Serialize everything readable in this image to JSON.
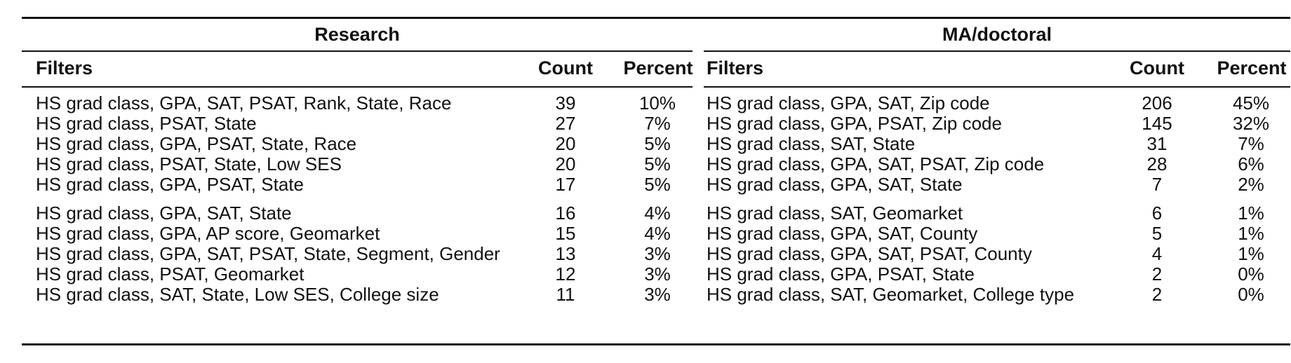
{
  "groups": {
    "left": {
      "title": "Research",
      "headers": {
        "filters": "Filters",
        "count": "Count",
        "percent": "Percent"
      },
      "rows": [
        {
          "filters": "HS grad class, GPA, SAT, PSAT, Rank, State, Race",
          "count": "39",
          "percent": "10%"
        },
        {
          "filters": "HS grad class, PSAT, State",
          "count": "27",
          "percent": "7%"
        },
        {
          "filters": "HS grad class, GPA, PSAT, State, Race",
          "count": "20",
          "percent": "5%"
        },
        {
          "filters": "HS grad class, PSAT, State, Low SES",
          "count": "20",
          "percent": "5%"
        },
        {
          "filters": "HS grad class, GPA, PSAT, State",
          "count": "17",
          "percent": "5%"
        },
        {
          "filters": "HS grad class, GPA, SAT, State",
          "count": "16",
          "percent": "4%"
        },
        {
          "filters": "HS grad class, GPA, AP score, Geomarket",
          "count": "15",
          "percent": "4%"
        },
        {
          "filters": "HS grad class, GPA, SAT, PSAT, State, Segment, Gender",
          "count": "13",
          "percent": "3%"
        },
        {
          "filters": "HS grad class, PSAT, Geomarket",
          "count": "12",
          "percent": "3%"
        },
        {
          "filters": "HS grad class, SAT, State, Low SES, College size",
          "count": "11",
          "percent": "3%"
        }
      ]
    },
    "right": {
      "title": "MA/doctoral",
      "headers": {
        "filters": "Filters",
        "count": "Count",
        "percent": "Percent"
      },
      "rows": [
        {
          "filters": "HS grad class, GPA, SAT, Zip code",
          "count": "206",
          "percent": "45%"
        },
        {
          "filters": "HS grad class, GPA, PSAT, Zip code",
          "count": "145",
          "percent": "32%"
        },
        {
          "filters": "HS grad class, SAT, State",
          "count": "31",
          "percent": "7%"
        },
        {
          "filters": "HS grad class, GPA, SAT, PSAT, Zip code",
          "count": "28",
          "percent": "6%"
        },
        {
          "filters": "HS grad class, GPA, SAT, State",
          "count": "7",
          "percent": "2%"
        },
        {
          "filters": "HS grad class, SAT, Geomarket",
          "count": "6",
          "percent": "1%"
        },
        {
          "filters": "HS grad class, GPA, SAT, County",
          "count": "5",
          "percent": "1%"
        },
        {
          "filters": "HS grad class, GPA, SAT, PSAT, County",
          "count": "4",
          "percent": "1%"
        },
        {
          "filters": "HS grad class, GPA, PSAT, State",
          "count": "2",
          "percent": "0%"
        },
        {
          "filters": "HS grad class, SAT, Geomarket, College type",
          "count": "2",
          "percent": "0%"
        }
      ]
    }
  }
}
